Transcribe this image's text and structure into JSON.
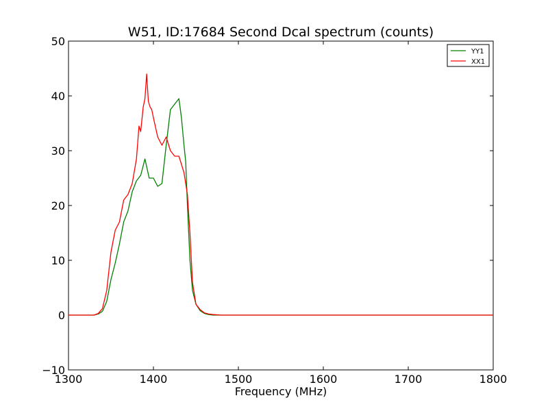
{
  "chart_data": {
    "type": "line",
    "title": "W51, ID:17684 Second Dcal spectrum (counts)",
    "xlabel": "Frequency (MHz)",
    "ylabel": "",
    "xlim": [
      1300,
      1800
    ],
    "ylim": [
      -10,
      50
    ],
    "xticks": [
      1300,
      1400,
      1500,
      1600,
      1700,
      1800
    ],
    "yticks": [
      -10,
      0,
      10,
      20,
      30,
      40,
      50
    ],
    "xtick_labels": [
      "1300",
      "1400",
      "1500",
      "1600",
      "1700",
      "1800"
    ],
    "ytick_labels": [
      "−10",
      "0",
      "10",
      "20",
      "30",
      "40",
      "50"
    ],
    "grid": false,
    "legend_position": "top-right",
    "series": [
      {
        "name": "YY1",
        "color": "#008000",
        "x": [
          1300,
          1330,
          1335,
          1340,
          1345,
          1350,
          1355,
          1360,
          1365,
          1370,
          1375,
          1380,
          1385,
          1390,
          1395,
          1400,
          1405,
          1410,
          1415,
          1420,
          1425,
          1430,
          1433,
          1436,
          1438,
          1440,
          1443,
          1446,
          1450,
          1455,
          1460,
          1465,
          1470,
          1480,
          1500,
          1550,
          1600,
          1650,
          1700,
          1720,
          1750,
          1800
        ],
        "y": [
          0,
          0,
          0.2,
          0.7,
          2.5,
          6.5,
          9.5,
          13,
          17,
          19,
          22.5,
          24.5,
          25.5,
          28.5,
          25,
          25,
          23.5,
          24,
          31,
          37.5,
          38.5,
          39.5,
          36,
          31,
          28,
          20,
          10,
          4.5,
          2,
          0.8,
          0.3,
          0.1,
          0,
          0,
          0,
          0,
          0,
          0,
          0,
          0,
          0,
          0
        ]
      },
      {
        "name": "XX1",
        "color": "#ff0000",
        "x": [
          1300,
          1330,
          1335,
          1340,
          1345,
          1350,
          1355,
          1360,
          1365,
          1370,
          1375,
          1380,
          1383,
          1385,
          1388,
          1390,
          1392,
          1394,
          1396,
          1398,
          1400,
          1405,
          1410,
          1415,
          1420,
          1425,
          1430,
          1433,
          1436,
          1440,
          1443,
          1446,
          1450,
          1455,
          1460,
          1465,
          1470,
          1480,
          1500,
          1550,
          1600,
          1650,
          1700,
          1720,
          1750,
          1800
        ],
        "y": [
          0,
          0,
          0.3,
          1.2,
          4.5,
          11.5,
          15.5,
          17,
          21,
          22,
          24,
          28.5,
          34.5,
          33.5,
          38,
          39.5,
          44,
          39,
          38,
          37.5,
          36,
          32.5,
          31,
          32.5,
          30,
          29,
          29,
          27.5,
          26,
          22,
          15,
          6,
          2,
          1,
          0.4,
          0.2,
          0.1,
          0,
          0,
          0,
          0,
          0,
          0,
          0,
          0,
          0
        ]
      }
    ]
  }
}
